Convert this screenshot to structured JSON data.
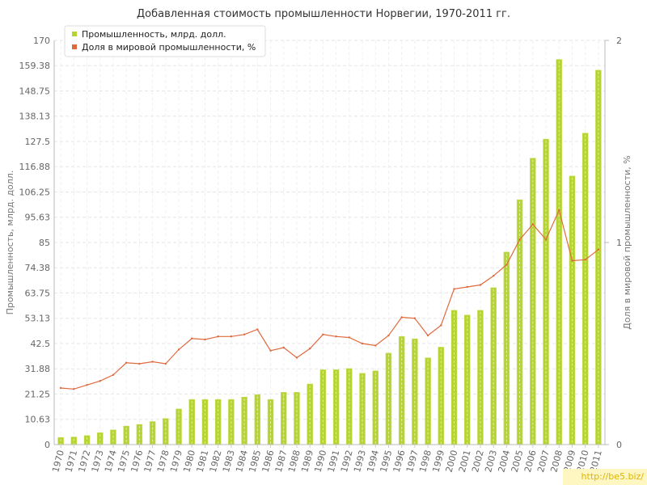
{
  "chart_data": {
    "type": "bar",
    "title": "Добавленная стоимость промышленности Норвегии, 1970-2011 гг.",
    "ylabel": "Промышленность, млрд. долл.",
    "y2label": "Доля в мировой промышленности, %",
    "ylim": [
      0,
      170
    ],
    "y2lim": [
      0,
      2
    ],
    "yticks": [
      "0",
      "10.63",
      "21.25",
      "31.88",
      "42.5",
      "53.13",
      "63.75",
      "74.38",
      "85",
      "95.63",
      "106.25",
      "116.88",
      "127.5",
      "138.13",
      "148.75",
      "159.38",
      "170"
    ],
    "y2ticks": [
      "0",
      "1",
      "2"
    ],
    "grid": true,
    "legend_position": "top-left",
    "colors": {
      "bar": "#b5d334",
      "bar_edge": "#c9e25a",
      "line": "#e06a3e"
    },
    "categories": [
      "1970",
      "1971",
      "1972",
      "1973",
      "1974",
      "1975",
      "1976",
      "1977",
      "1978",
      "1979",
      "1980",
      "1981",
      "1982",
      "1983",
      "1984",
      "1985",
      "1986",
      "1987",
      "1988",
      "1989",
      "1990",
      "1991",
      "1992",
      "1993",
      "1994",
      "1995",
      "1996",
      "1997",
      "1998",
      "1999",
      "2000",
      "2001",
      "2002",
      "2003",
      "2004",
      "2005",
      "2006",
      "2007",
      "2008",
      "2009",
      "2010",
      "2011"
    ],
    "series": [
      {
        "name": "Промышленность, млрд. долл.",
        "type": "bar",
        "axis": "left",
        "values": [
          3,
          3.2,
          3.8,
          5,
          6.2,
          7.8,
          8.5,
          9.7,
          11,
          15,
          19,
          19,
          19,
          19,
          20,
          21,
          19,
          22,
          22,
          25.5,
          31.5,
          31.5,
          32,
          30,
          31,
          38.5,
          45.5,
          44.5,
          36.5,
          41,
          56.5,
          54.5,
          56.5,
          66,
          81,
          103,
          120.5,
          128.5,
          162,
          113,
          131,
          157.5
        ]
      },
      {
        "name": "Доля в мировой промышленности, %",
        "type": "line",
        "axis": "right",
        "values": [
          0.28,
          0.275,
          0.295,
          0.315,
          0.345,
          0.405,
          0.4,
          0.41,
          0.4,
          0.47,
          0.525,
          0.52,
          0.535,
          0.535,
          0.545,
          0.57,
          0.465,
          0.48,
          0.43,
          0.475,
          0.545,
          0.535,
          0.53,
          0.5,
          0.49,
          0.54,
          0.63,
          0.625,
          0.54,
          0.59,
          0.77,
          0.78,
          0.79,
          0.835,
          0.89,
          1.015,
          1.09,
          1.015,
          1.16,
          0.91,
          0.915,
          0.965
        ]
      }
    ]
  },
  "watermark": "http://be5.biz/"
}
